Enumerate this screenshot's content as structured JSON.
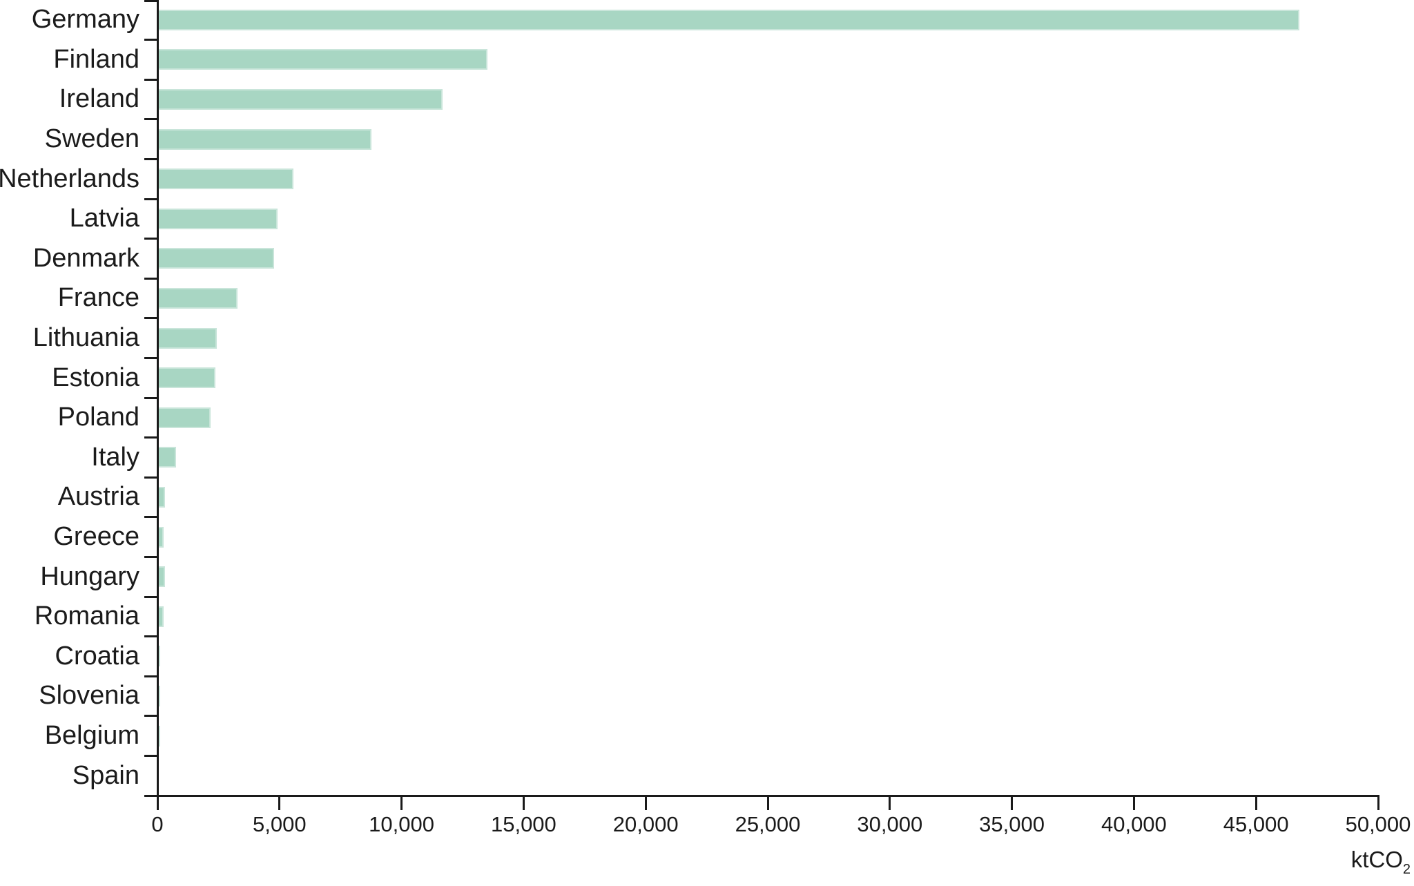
{
  "chart_data": {
    "type": "bar",
    "orientation": "horizontal",
    "title": "",
    "xlabel_main": "ktCO",
    "xlabel_sub": "2",
    "ylabel": "",
    "xlim": [
      0,
      50000
    ],
    "grid": false,
    "legend_position": "none",
    "bar_color": "#a8d6c3",
    "axis_color": "#1a1a1a",
    "text_color": "#1b1b1b",
    "categories": [
      "Germany",
      "Finland",
      "Ireland",
      "Sweden",
      "Netherlands",
      "Latvia",
      "Denmark",
      "France",
      "Lithuania",
      "Estonia",
      "Poland",
      "Italy",
      "Austria",
      "Greece",
      "Hungary",
      "Romania",
      "Croatia",
      "Slovenia",
      "Belgium",
      "Spain"
    ],
    "values": [
      46800,
      13550,
      11700,
      8800,
      5600,
      4950,
      4800,
      3300,
      2450,
      2400,
      2200,
      800,
      350,
      290,
      330,
      280,
      155,
      135,
      135,
      0
    ],
    "xticks": [
      0,
      5000,
      10000,
      15000,
      20000,
      25000,
      30000,
      35000,
      40000,
      45000,
      50000
    ],
    "xtick_labels": [
      "0",
      "5,000",
      "10,000",
      "15,000",
      "20,000",
      "25,000",
      "30,000",
      "35,000",
      "40,000",
      "45,000",
      "50,000"
    ]
  }
}
